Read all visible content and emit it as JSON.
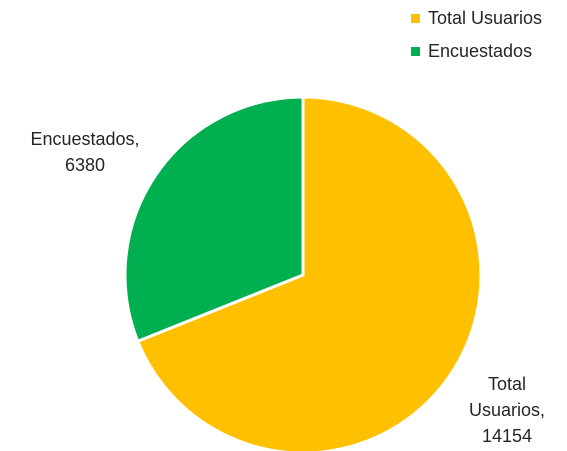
{
  "chart_data": {
    "type": "pie",
    "title": "",
    "start_angle_deg": 0,
    "direction": "clockwise",
    "legend_position": "top-right",
    "slices": [
      {
        "label": "Total Usuarios",
        "value": 14154,
        "color": "#FFC000",
        "data_label": [
          "Total",
          "Usuarios,",
          "14154"
        ]
      },
      {
        "label": "Encuestados",
        "value": 6380,
        "color": "#00B050",
        "data_label": [
          "Encuestados,",
          "6380"
        ]
      }
    ],
    "legend": [
      {
        "label": "Total Usuarios",
        "color": "#FFC000"
      },
      {
        "label": "Encuestados",
        "color": "#00B050"
      }
    ]
  }
}
